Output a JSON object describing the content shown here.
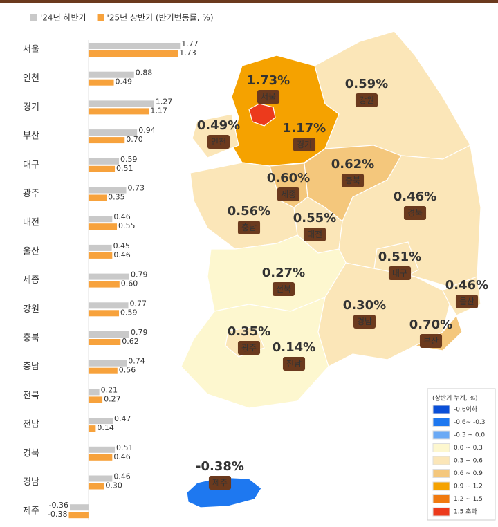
{
  "chart_data": [
    {
      "type": "bar",
      "orientation": "horizontal",
      "categories": [
        "서울",
        "인천",
        "경기",
        "부산",
        "대구",
        "광주",
        "대전",
        "울산",
        "세종",
        "강원",
        "충북",
        "충남",
        "전북",
        "전남",
        "경북",
        "경남",
        "제주"
      ],
      "series": [
        {
          "name": "'24년 하반기",
          "color": "#c9c9c9",
          "values": [
            1.77,
            0.88,
            1.27,
            0.94,
            0.59,
            0.73,
            0.46,
            0.45,
            0.79,
            0.77,
            0.79,
            0.74,
            0.21,
            0.47,
            0.51,
            0.46,
            -0.36
          ],
          "value_labels": [
            "1.77",
            "0.88",
            "1.27",
            "0.94",
            "0.59",
            "0.73",
            "0.46",
            "0.45",
            "0.79",
            "0.77",
            "0.79",
            "0.74",
            "0.21",
            "0.47",
            "0.51",
            "0.46",
            "-0.36"
          ]
        },
        {
          "name": "'25년 상반기 (반기변동률, %)",
          "color": "#f7a23c",
          "values": [
            1.73,
            0.49,
            1.17,
            0.7,
            0.51,
            0.35,
            0.55,
            0.46,
            0.6,
            0.59,
            0.62,
            0.56,
            0.27,
            0.14,
            0.46,
            0.3,
            -0.38
          ],
          "value_labels": [
            "1.73",
            "0.49",
            "1.17",
            "0.70",
            "0.51",
            "0.35",
            "0.55",
            "0.46",
            "0.60",
            "0.59",
            "0.62",
            "0.56",
            "0.27",
            "0.14",
            "0.46",
            "0.30",
            "-0.38"
          ]
        }
      ],
      "xlim": [
        -0.4,
        1.9
      ]
    },
    {
      "type": "map",
      "regions": [
        {
          "name": "서울",
          "value": 1.73,
          "value_label": "1.73%"
        },
        {
          "name": "인천",
          "value": 0.49,
          "value_label": "0.49%"
        },
        {
          "name": "경기",
          "value": 1.17,
          "value_label": "1.17%"
        },
        {
          "name": "부산",
          "value": 0.7,
          "value_label": "0.70%"
        },
        {
          "name": "대구",
          "value": 0.51,
          "value_label": "0.51%"
        },
        {
          "name": "광주",
          "value": 0.35,
          "value_label": "0.35%"
        },
        {
          "name": "대전",
          "value": 0.55,
          "value_label": "0.55%"
        },
        {
          "name": "울산",
          "value": 0.46,
          "value_label": "0.46%"
        },
        {
          "name": "세종",
          "value": 0.6,
          "value_label": "0.60%"
        },
        {
          "name": "강원",
          "value": 0.59,
          "value_label": "0.59%"
        },
        {
          "name": "충북",
          "value": 0.62,
          "value_label": "0.62%"
        },
        {
          "name": "충남",
          "value": 0.56,
          "value_label": "0.56%"
        },
        {
          "name": "전북",
          "value": 0.27,
          "value_label": "0.27%"
        },
        {
          "name": "전남",
          "value": 0.14,
          "value_label": "0.14%"
        },
        {
          "name": "경북",
          "value": 0.46,
          "value_label": "0.46%"
        },
        {
          "name": "경남",
          "value": 0.3,
          "value_label": "0.30%"
        },
        {
          "name": "제주",
          "value": -0.38,
          "value_label": "-0.38%"
        }
      ],
      "legend_title": "(상반기 누계, %)",
      "breaks": [
        -0.6,
        -0.3,
        0,
        0.3,
        0.6,
        0.9,
        1.2,
        1.5
      ],
      "legend": [
        {
          "label": "-0.6이하",
          "color": "#0a4fd8"
        },
        {
          "label": "-0.6~ -0.3",
          "color": "#1e78f0"
        },
        {
          "label": "-0.3 ~ 0.0",
          "color": "#6aa9f5"
        },
        {
          "label": "0.0 ~ 0.3",
          "color": "#fdf7cf"
        },
        {
          "label": "0.3 ~ 0.6",
          "color": "#fbe6b8"
        },
        {
          "label": "0.6 ~ 0.9",
          "color": "#f4c77c"
        },
        {
          "label": "0.9 ~ 1.2",
          "color": "#f5a200"
        },
        {
          "label": "1.2 ~ 1.5",
          "color": "#f07a10"
        },
        {
          "label": "1.5 초과",
          "color": "#ec3a1c"
        }
      ]
    }
  ]
}
